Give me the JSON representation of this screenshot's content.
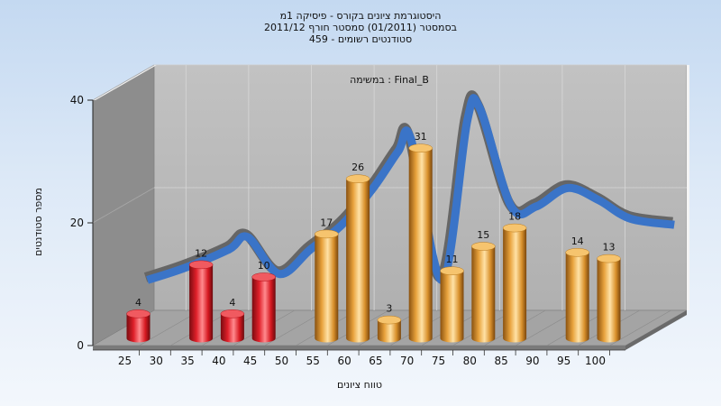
{
  "chart_data": {
    "type": "bar",
    "title_lines": [
      "היסטוגרמת ציונים בקורס - פיסיקה 1מ",
      "בסמסטר  (01/2011)  סמסטר חורף 2011/12",
      "459 - סטודנטים רשומים"
    ],
    "annotation": "במשימה : Final_B",
    "xlabel": "טווח ציונים",
    "ylabel": "מספר סטודנטים",
    "x_ticks": [
      "25",
      "30",
      "35",
      "40",
      "45",
      "50",
      "55",
      "60",
      "65",
      "70",
      "75",
      "80",
      "85",
      "90",
      "95",
      "100"
    ],
    "y_ticks": [
      "0",
      "20",
      "40"
    ],
    "ylim": [
      0,
      40
    ],
    "bars": [
      {
        "x": 25,
        "value": 4,
        "label": "4",
        "color": "red"
      },
      {
        "x": 35,
        "value": 12,
        "label": "12",
        "color": "red"
      },
      {
        "x": 40,
        "value": 4,
        "label": "4",
        "color": "red"
      },
      {
        "x": 45,
        "value": 10,
        "label": "10",
        "color": "red"
      },
      {
        "x": 55,
        "value": 17,
        "label": "17",
        "color": "orange"
      },
      {
        "x": 60,
        "value": 26,
        "label": "26",
        "color": "orange"
      },
      {
        "x": 65,
        "value": 3,
        "label": "3",
        "color": "orange"
      },
      {
        "x": 70,
        "value": 31,
        "label": "31",
        "color": "orange"
      },
      {
        "x": 75,
        "value": 11,
        "label": "11",
        "color": "orange"
      },
      {
        "x": 80,
        "value": 15,
        "label": "15",
        "color": "orange"
      },
      {
        "x": 85,
        "value": 18,
        "label": "18",
        "color": "orange"
      },
      {
        "x": 95,
        "value": 14,
        "label": "14",
        "color": "orange"
      },
      {
        "x": 100,
        "value": 13,
        "label": "13",
        "color": "orange"
      }
    ],
    "curve": [
      {
        "x": 24,
        "value": 7
      },
      {
        "x": 30,
        "value": 9
      },
      {
        "x": 37,
        "value": 12
      },
      {
        "x": 40,
        "value": 14
      },
      {
        "x": 45,
        "value": 8
      },
      {
        "x": 50,
        "value": 12
      },
      {
        "x": 55,
        "value": 16
      },
      {
        "x": 60,
        "value": 22
      },
      {
        "x": 64,
        "value": 28
      },
      {
        "x": 66,
        "value": 30
      },
      {
        "x": 71,
        "value": 7
      },
      {
        "x": 75,
        "value": 33
      },
      {
        "x": 77,
        "value": 35
      },
      {
        "x": 82,
        "value": 19
      },
      {
        "x": 86,
        "value": 19
      },
      {
        "x": 91,
        "value": 22
      },
      {
        "x": 96,
        "value": 20
      },
      {
        "x": 101,
        "value": 17
      },
      {
        "x": 108,
        "value": 16
      }
    ],
    "colors": {
      "red_bar": "#e0202a",
      "orange_bar": "#e8a23c",
      "curve_front": "#3a74c8",
      "curve_back": "#666666",
      "wall_left": "#8a8a8a",
      "wall_back": "#b8b8b8",
      "floor": "#9e9e9e"
    },
    "grid": true,
    "legend": "none"
  }
}
